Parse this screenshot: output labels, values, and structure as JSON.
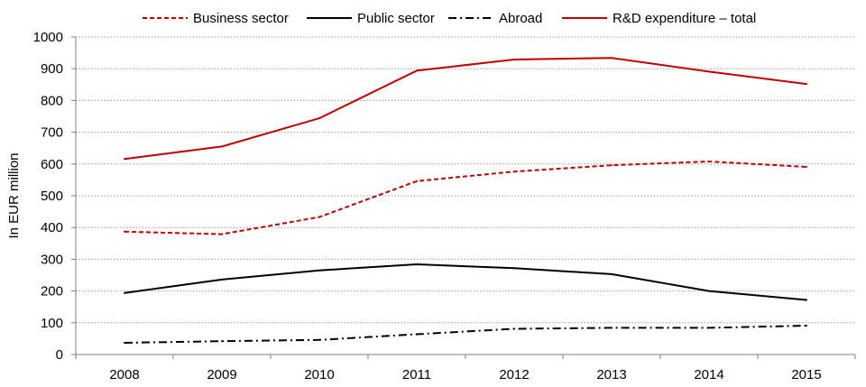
{
  "chart_data": {
    "type": "line",
    "title": "",
    "xlabel": "",
    "ylabel": "In EUR million",
    "categories": [
      "2008",
      "2009",
      "2010",
      "2011",
      "2012",
      "2013",
      "2014",
      "2015"
    ],
    "ylim": [
      0,
      1000
    ],
    "yticks": [
      0,
      100,
      200,
      300,
      400,
      500,
      600,
      700,
      800,
      900,
      1000
    ],
    "grid": "horizontal dotted",
    "legend_position": "top",
    "series": [
      {
        "name": "Business sector",
        "color": "#c00000",
        "style": "dashed",
        "values": [
          387,
          379,
          433,
          546,
          576,
          596,
          608,
          591
        ]
      },
      {
        "name": "Public sector",
        "color": "#000000",
        "style": "solid",
        "values": [
          194,
          236,
          265,
          284,
          272,
          253,
          200,
          172
        ]
      },
      {
        "name": "Abroad",
        "color": "#000000",
        "style": "dash-dot",
        "values": [
          37,
          42,
          46,
          64,
          81,
          84,
          84,
          91
        ]
      },
      {
        "name": "R&D expenditure – total",
        "color": "#c00000",
        "style": "solid",
        "values": [
          616,
          655,
          744,
          894,
          929,
          934,
          891,
          852
        ]
      }
    ]
  }
}
